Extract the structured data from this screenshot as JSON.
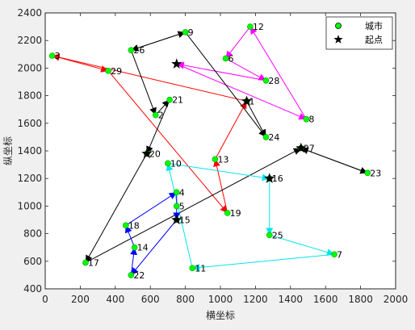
{
  "chart_data": {
    "type": "scatter",
    "title": "",
    "xlabel": "横坐标",
    "ylabel": "纵坐标",
    "xlim": [
      0,
      2000
    ],
    "ylim": [
      400,
      2400
    ],
    "xticks": [
      0,
      200,
      400,
      600,
      800,
      1000,
      1200,
      1400,
      1600,
      1800,
      2000
    ],
    "yticks": [
      400,
      600,
      800,
      1000,
      1200,
      1400,
      1600,
      1800,
      2000,
      2200,
      2400
    ],
    "grid": false,
    "legend_position": "top-right",
    "legend": [
      {
        "label": "城市",
        "marker": "circle",
        "color": "#00ff00"
      },
      {
        "label": "起点",
        "marker": "star",
        "color": "#000000"
      }
    ],
    "cities": [
      {
        "id": "1",
        "x": 1150,
        "y": 1760
      },
      {
        "id": "2",
        "x": 630,
        "y": 1660
      },
      {
        "id": "3",
        "x": 40,
        "y": 2090
      },
      {
        "id": "4",
        "x": 750,
        "y": 1100
      },
      {
        "id": "5",
        "x": 750,
        "y": 1000
      },
      {
        "id": "6",
        "x": 1030,
        "y": 2070
      },
      {
        "id": "7",
        "x": 1650,
        "y": 650
      },
      {
        "id": "8",
        "x": 1490,
        "y": 1630
      },
      {
        "id": "9",
        "x": 800,
        "y": 2260
      },
      {
        "id": "10",
        "x": 700,
        "y": 1310
      },
      {
        "id": "11",
        "x": 840,
        "y": 550
      },
      {
        "id": "12",
        "x": 1170,
        "y": 2300
      },
      {
        "id": "13",
        "x": 970,
        "y": 1340
      },
      {
        "id": "14",
        "x": 510,
        "y": 700
      },
      {
        "id": "15",
        "x": 750,
        "y": 900
      },
      {
        "id": "16",
        "x": 1280,
        "y": 1200
      },
      {
        "id": "17",
        "x": 230,
        "y": 590
      },
      {
        "id": "18",
        "x": 460,
        "y": 860
      },
      {
        "id": "19",
        "x": 1040,
        "y": 950
      },
      {
        "id": "20",
        "x": 580,
        "y": 1380
      },
      {
        "id": "21",
        "x": 710,
        "y": 1770
      },
      {
        "id": "22",
        "x": 490,
        "y": 500
      },
      {
        "id": "23",
        "x": 1840,
        "y": 1240
      },
      {
        "id": "24",
        "x": 1260,
        "y": 1500
      },
      {
        "id": "25",
        "x": 1280,
        "y": 790
      },
      {
        "id": "26",
        "x": 490,
        "y": 2130
      },
      {
        "id": "27",
        "x": 1460,
        "y": 1420
      },
      {
        "id": "28",
        "x": 1260,
        "y": 1910
      },
      {
        "id": "29",
        "x": 360,
        "y": 1980
      }
    ],
    "start_points": [
      {
        "x": 1150,
        "y": 1760
      },
      {
        "x": 750,
        "y": 2030
      },
      {
        "x": 580,
        "y": 1380
      },
      {
        "x": 1280,
        "y": 1200
      },
      {
        "x": 750,
        "y": 900
      },
      {
        "x": 1460,
        "y": 1420
      }
    ],
    "routes": [
      {
        "color": "#ff0000",
        "path": [
          [
            1150,
            1760
          ],
          [
            40,
            2090
          ],
          [
            360,
            1980
          ],
          [
            1040,
            950
          ],
          [
            970,
            1340
          ],
          [
            1150,
            1760
          ]
        ]
      },
      {
        "color": "#ff00ff",
        "path": [
          [
            750,
            2030
          ],
          [
            1490,
            1630
          ],
          [
            1170,
            2300
          ],
          [
            1030,
            2070
          ],
          [
            1260,
            1910
          ],
          [
            750,
            2030
          ]
        ]
      },
      {
        "color": "#000000",
        "path": [
          [
            580,
            1380
          ],
          [
            230,
            590
          ],
          [
            1460,
            1420
          ],
          [
            1840,
            1240
          ],
          [
            1460,
            1420
          ]
        ]
      },
      {
        "color": "#000000",
        "path": [
          [
            1150,
            1760
          ],
          [
            1260,
            1500
          ]
        ]
      },
      {
        "color": "#000000",
        "path": [
          [
            800,
            2260
          ],
          [
            490,
            2130
          ],
          [
            630,
            1660
          ],
          [
            710,
            1770
          ],
          [
            580,
            1380
          ]
        ]
      },
      {
        "color": "#000000",
        "path": [
          [
            490,
            2130
          ],
          [
            800,
            2260
          ],
          [
            1260,
            1500
          ]
        ]
      },
      {
        "color": "#00e5ee",
        "path": [
          [
            1280,
            1200
          ],
          [
            1280,
            790
          ],
          [
            1650,
            650
          ],
          [
            840,
            550
          ],
          [
            700,
            1310
          ],
          [
            1280,
            1200
          ]
        ]
      },
      {
        "color": "#0000ff",
        "path": [
          [
            750,
            900
          ],
          [
            490,
            500
          ],
          [
            510,
            700
          ],
          [
            460,
            860
          ],
          [
            750,
            1100
          ],
          [
            750,
            900
          ]
        ]
      }
    ]
  }
}
